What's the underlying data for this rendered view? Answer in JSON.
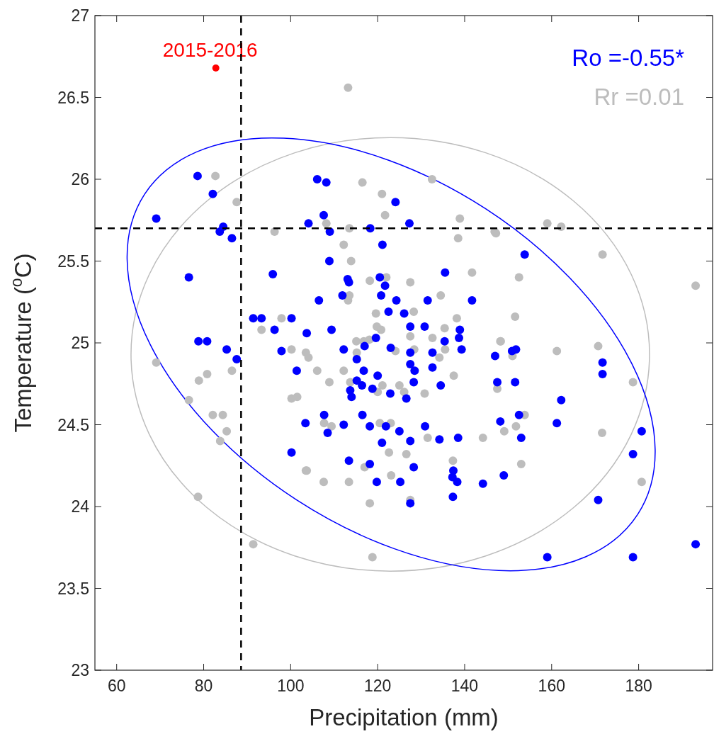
{
  "chart_data": {
    "type": "scatter",
    "xlabel": "Precipitation (mm)",
    "ylabel": "Temperature ($^{o}$C)",
    "xlim": [
      55,
      197
    ],
    "ylim": [
      23,
      27
    ],
    "xticks": [
      60,
      80,
      100,
      120,
      140,
      160,
      180
    ],
    "yticks": [
      23,
      23.5,
      24,
      24.5,
      25,
      25.5,
      26,
      26.5,
      27
    ],
    "grid": false,
    "legend": false,
    "marker": "circle",
    "annotations": [
      "Rr =0.01",
      "Ro =-0.55*"
    ],
    "ref_lines": [
      {
        "axis": "x",
        "value": 88.6,
        "color": "#000000",
        "line_style": "dashed"
      },
      {
        "axis": "y",
        "value": 25.7,
        "color": "#000000",
        "line_style": "dashed"
      }
    ],
    "series": [
      {
        "type": "scatter",
        "color": "#bdbdbd",
        "x": [
          82.7,
          87.6,
          96.3,
          97.9,
          93.3,
          116.5,
          132.5,
          121.0,
          121.7,
          108.2,
          113.5,
          138.9,
          138.5,
          146.9,
          112.2,
          113.9,
          118.2,
          122.0,
          127.5,
          141.7,
          134.5,
          113.2,
          113.5,
          119.6,
          128.3,
          138.2,
          119.8,
          120.8,
          135.4,
          159.0,
          162.2,
          171.7,
          152.5,
          151.6,
          193.1,
          147.2,
          69.1,
          80.8,
          78.9,
          86.5,
          100.2,
          76.6,
          82.1,
          84.4,
          85.3,
          83.8,
          100.2,
          101.5,
          78.7,
          91.4,
          103.5,
          103.5,
          115.1,
          116.8,
          118.1,
          104.1,
          115.2,
          124.1,
          127.5,
          128.4,
          132.6,
          135.5,
          134.2,
          148.2,
          106.1,
          112.2,
          108.9,
          113.7,
          121.1,
          120.0,
          125.0,
          126.1,
          130.8,
          137.5,
          147.5,
          107.7,
          109.4,
          120.5,
          123.0,
          131.5,
          144.2,
          149.1,
          122.6,
          126.6,
          137.3,
          103.7,
          107.6,
          113.4,
          117.0,
          123.1,
          118.2,
          127.5,
          118.8,
          148.3,
          151.0,
          161.2,
          170.7,
          178.7,
          153.8,
          151.8,
          171.6,
          153.0,
          180.7,
          113.2
        ],
        "values": [
          26.02,
          25.86,
          25.68,
          25.15,
          25.08,
          25.98,
          26.0,
          25.91,
          25.78,
          25.73,
          25.7,
          25.76,
          25.64,
          25.68,
          25.6,
          25.5,
          25.38,
          25.4,
          25.37,
          25.43,
          25.29,
          25.26,
          25.29,
          25.18,
          25.19,
          25.15,
          25.1,
          25.08,
          25.09,
          25.73,
          25.71,
          25.54,
          25.4,
          25.16,
          25.35,
          25.67,
          24.88,
          24.81,
          24.77,
          24.83,
          24.96,
          24.65,
          24.56,
          24.56,
          24.46,
          24.4,
          24.66,
          24.67,
          24.06,
          23.77,
          24.22,
          24.94,
          25.01,
          25.01,
          25.02,
          24.91,
          24.94,
          24.95,
          25.04,
          24.96,
          25.03,
          24.96,
          24.91,
          25.01,
          24.83,
          24.83,
          24.76,
          24.76,
          24.74,
          24.7,
          24.74,
          24.7,
          24.69,
          24.8,
          24.72,
          24.51,
          24.49,
          24.51,
          24.51,
          24.42,
          24.42,
          24.46,
          24.33,
          24.32,
          24.28,
          24.22,
          24.15,
          24.15,
          24.24,
          24.19,
          24.02,
          24.04,
          23.69,
          25.01,
          24.92,
          24.95,
          24.98,
          24.76,
          24.56,
          24.49,
          24.45,
          24.26,
          24.15,
          26.56
        ]
      },
      {
        "type": "scatter",
        "color": "#0000ff",
        "x": [
          78.6,
          82.1,
          69.1,
          84.5,
          83.7,
          86.5,
          76.6,
          95.9,
          91.4,
          93.3,
          100.2,
          96.3,
          106.1,
          108.2,
          124.1,
          107.6,
          104.1,
          109.0,
          118.3,
          127.3,
          121.1,
          108.9,
          135.5,
          113.1,
          113.4,
          120.5,
          121.7,
          111.9,
          106.5,
          120.8,
          124.3,
          131.5,
          141.7,
          122.5,
          126.1,
          109.4,
          127.5,
          130.8,
          138.9,
          103.7,
          153.8,
          78.8,
          80.8,
          85.3,
          87.6,
          97.9,
          101.4,
          103.4,
          100.2,
          112.2,
          115.2,
          117.0,
          119.6,
          123.0,
          127.5,
          132.6,
          135.4,
          138.7,
          139.3,
          147.0,
          127.5,
          128.5,
          132.6,
          116.8,
          120.0,
          115.2,
          116.4,
          118.8,
          113.7,
          114.0,
          122.9,
          126.6,
          128.3,
          134.5,
          147.5,
          107.7,
          112.2,
          116.5,
          118.2,
          121.9,
          125.0,
          130.9,
          108.5,
          121.0,
          127.5,
          134.2,
          138.5,
          148.2,
          113.4,
          118.2,
          128.3,
          137.4,
          137.2,
          138.3,
          119.8,
          125.2,
          144.2,
          149.0,
          137.3,
          127.5,
          150.9,
          151.8,
          171.7,
          171.7,
          151.6,
          162.2,
          152.5,
          161.2,
          153.0,
          180.7,
          178.7,
          170.7,
          193.1,
          159.0,
          178.7
        ],
        "values": [
          26.02,
          25.91,
          25.76,
          25.71,
          25.68,
          25.64,
          25.4,
          25.42,
          25.15,
          25.15,
          25.15,
          25.08,
          26.0,
          25.98,
          25.86,
          25.78,
          25.73,
          25.68,
          25.7,
          25.73,
          25.6,
          25.5,
          25.43,
          25.39,
          25.37,
          25.4,
          25.35,
          25.29,
          25.26,
          25.29,
          25.26,
          25.26,
          25.26,
          25.19,
          25.18,
          25.08,
          25.1,
          25.1,
          25.08,
          25.06,
          25.54,
          25.01,
          25.01,
          24.96,
          24.9,
          24.95,
          24.83,
          24.51,
          24.33,
          24.96,
          24.9,
          24.98,
          25.03,
          24.97,
          24.94,
          24.94,
          25.01,
          25.03,
          24.96,
          24.92,
          24.87,
          24.83,
          24.85,
          24.83,
          24.8,
          24.77,
          24.74,
          24.72,
          24.71,
          24.67,
          24.69,
          24.66,
          24.76,
          24.74,
          24.76,
          24.56,
          24.5,
          24.56,
          24.49,
          24.49,
          24.46,
          24.49,
          24.45,
          24.39,
          24.4,
          24.41,
          24.42,
          24.52,
          24.28,
          24.26,
          24.24,
          24.22,
          24.18,
          24.15,
          24.15,
          24.15,
          24.14,
          24.19,
          24.06,
          24.02,
          24.95,
          24.96,
          24.88,
          24.81,
          24.76,
          24.65,
          24.56,
          24.51,
          24.42,
          24.46,
          24.32,
          24.04,
          23.77,
          23.69,
          23.69
        ]
      },
      {
        "type": "scatter",
        "name": "2015-2016",
        "color": "#ff0000",
        "x": [
          82.8
        ],
        "values": [
          26.68
        ]
      }
    ]
  }
}
